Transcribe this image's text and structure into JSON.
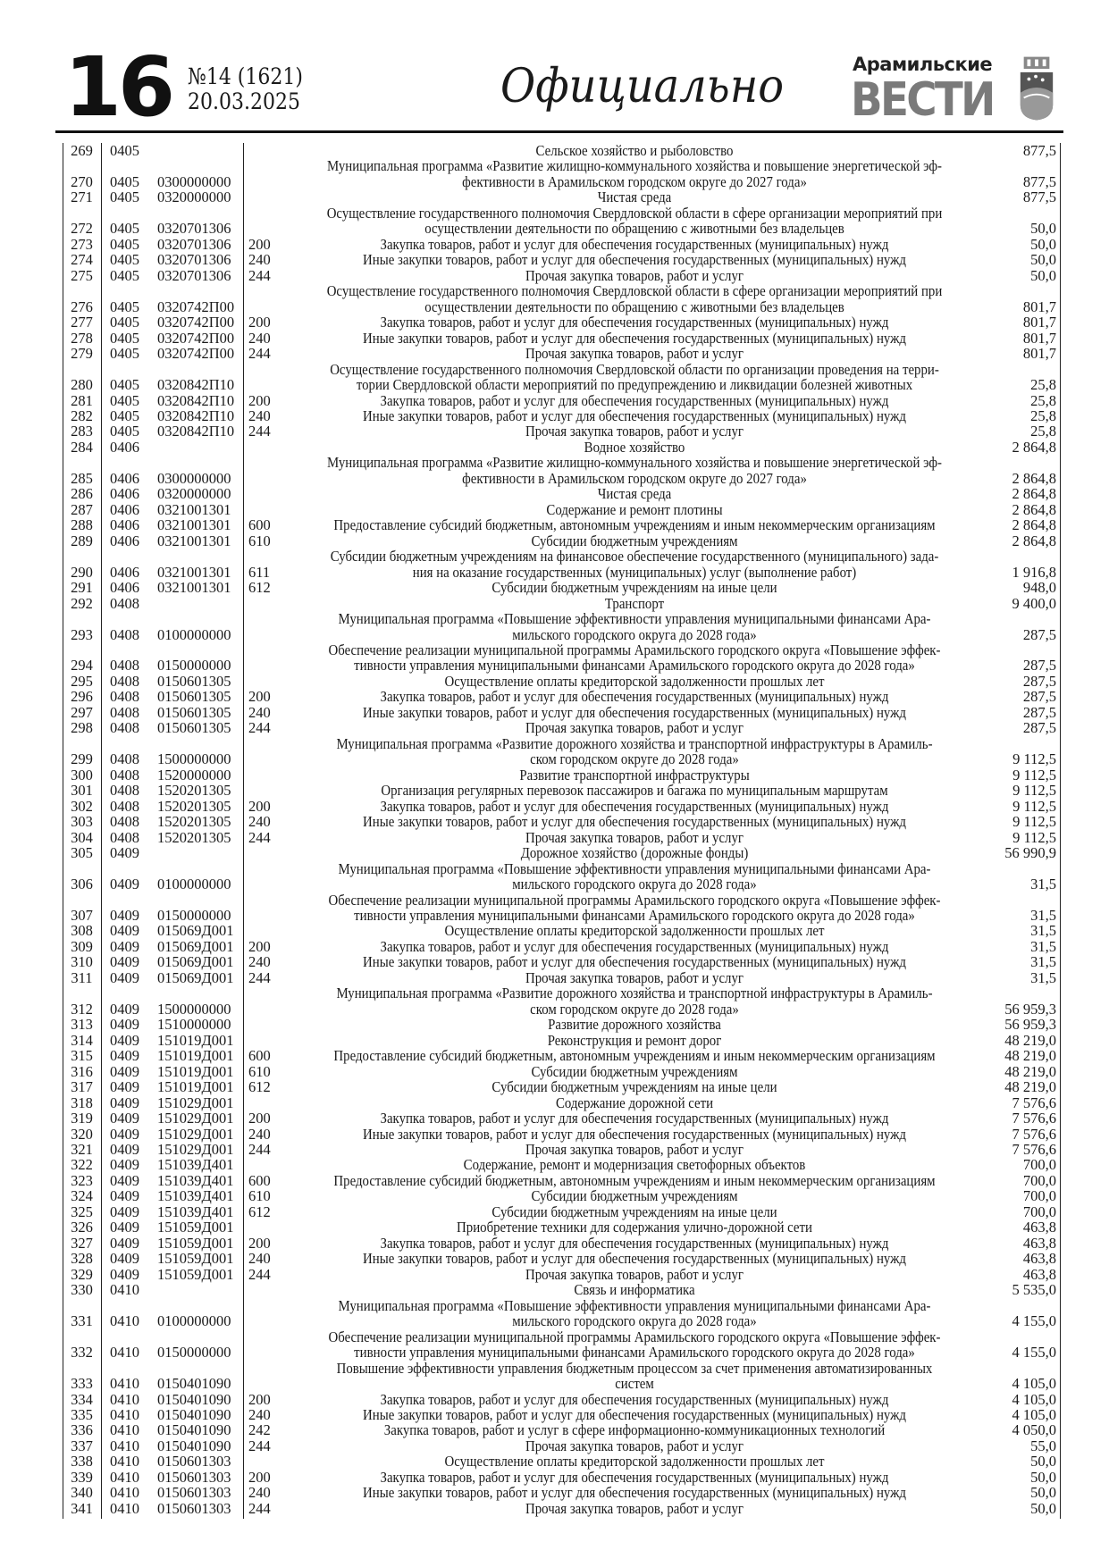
{
  "header": {
    "page_number": "16",
    "issue": "№14 (1621)",
    "date": "20.03.2025",
    "section": "Официально",
    "logo_top": "Арамильские",
    "logo_main": "ВЕСТИ"
  },
  "colors": {
    "text": "#1a1a1a",
    "logo_gray": "#7a7a7a"
  },
  "rows": [
    [
      "269",
      "0405",
      "",
      "",
      [
        "Сельское хозяйство и рыболовство"
      ],
      "877,5"
    ],
    [
      "270",
      "0405",
      "0300000000",
      "",
      [
        "Муниципальная программа «Развитие жилищно-коммунального хозяйства и повышение энергетической эф-",
        "фективности в Арамильском городском округе до 2027 года»"
      ],
      "877,5"
    ],
    [
      "271",
      "0405",
      "0320000000",
      "",
      [
        "Чистая среда"
      ],
      "877,5"
    ],
    [
      "272",
      "0405",
      "0320701306",
      "",
      [
        "Осуществление государственного полномочия Свердловской области в сфере организации мероприятий при",
        "осуществлении деятельности по обращению с животными без владельцев"
      ],
      "50,0"
    ],
    [
      "273",
      "0405",
      "0320701306",
      "200",
      [
        "Закупка товаров, работ и услуг для обеспечения государственных (муниципальных) нужд"
      ],
      "50,0"
    ],
    [
      "274",
      "0405",
      "0320701306",
      "240",
      [
        "Иные закупки товаров, работ и услуг для обеспечения государственных (муниципальных) нужд"
      ],
      "50,0"
    ],
    [
      "275",
      "0405",
      "0320701306",
      "244",
      [
        "Прочая закупка товаров, работ и услуг"
      ],
      "50,0"
    ],
    [
      "276",
      "0405",
      "0320742П00",
      "",
      [
        "Осуществление государственного полномочия Свердловской области в сфере организации мероприятий при",
        "осуществлении деятельности по обращению с животными без владельцев"
      ],
      "801,7"
    ],
    [
      "277",
      "0405",
      "0320742П00",
      "200",
      [
        "Закупка товаров, работ и услуг для обеспечения государственных (муниципальных) нужд"
      ],
      "801,7"
    ],
    [
      "278",
      "0405",
      "0320742П00",
      "240",
      [
        "Иные закупки товаров, работ и услуг для обеспечения государственных (муниципальных) нужд"
      ],
      "801,7"
    ],
    [
      "279",
      "0405",
      "0320742П00",
      "244",
      [
        "Прочая закупка товаров, работ и услуг"
      ],
      "801,7"
    ],
    [
      "280",
      "0405",
      "0320842П10",
      "",
      [
        "Осуществление государственного полномочия Свердловской области по организации проведения на терри-",
        "тории Свердловской области мероприятий по предупреждению и ликвидации болезней животных"
      ],
      "25,8"
    ],
    [
      "281",
      "0405",
      "0320842П10",
      "200",
      [
        "Закупка товаров, работ и услуг для обеспечения государственных (муниципальных) нужд"
      ],
      "25,8"
    ],
    [
      "282",
      "0405",
      "0320842П10",
      "240",
      [
        "Иные закупки товаров, работ и услуг для обеспечения государственных (муниципальных) нужд"
      ],
      "25,8"
    ],
    [
      "283",
      "0405",
      "0320842П10",
      "244",
      [
        "Прочая закупка товаров, работ и услуг"
      ],
      "25,8"
    ],
    [
      "284",
      "0406",
      "",
      "",
      [
        "Водное хозяйство"
      ],
      "2 864,8"
    ],
    [
      "285",
      "0406",
      "0300000000",
      "",
      [
        "Муниципальная программа «Развитие жилищно-коммунального хозяйства и повышение энергетической эф-",
        "фективности в Арамильском городском округе до 2027 года»"
      ],
      "2 864,8"
    ],
    [
      "286",
      "0406",
      "0320000000",
      "",
      [
        "Чистая среда"
      ],
      "2 864,8"
    ],
    [
      "287",
      "0406",
      "0321001301",
      "",
      [
        "Содержание и ремонт плотины"
      ],
      "2 864,8"
    ],
    [
      "288",
      "0406",
      "0321001301",
      "600",
      [
        "Предоставление субсидий бюджетным, автономным учреждениям и иным некоммерческим организациям"
      ],
      "2 864,8"
    ],
    [
      "289",
      "0406",
      "0321001301",
      "610",
      [
        "Субсидии бюджетным учреждениям"
      ],
      "2 864,8"
    ],
    [
      "290",
      "0406",
      "0321001301",
      "611",
      [
        "Субсидии бюджетным учреждениям на финансовое обеспечение государственного (муниципального) зада-",
        "ния на оказание государственных (муниципальных) услуг (выполнение работ)"
      ],
      "1 916,8"
    ],
    [
      "291",
      "0406",
      "0321001301",
      "612",
      [
        "Субсидии бюджетным учреждениям на иные цели"
      ],
      "948,0"
    ],
    [
      "292",
      "0408",
      "",
      "",
      [
        "Транспорт"
      ],
      "9 400,0"
    ],
    [
      "293",
      "0408",
      "0100000000",
      "",
      [
        "Муниципальная программа «Повышение эффективности управления муниципальными финансами Ара-",
        "мильского городского округа до 2028 года»"
      ],
      "287,5"
    ],
    [
      "294",
      "0408",
      "0150000000",
      "",
      [
        "Обеспечение реализации муниципальной программы Арамильского городского округа «Повышение эффек-",
        "тивности управления муниципальными финансами Арамильского городского округа до 2028 года»"
      ],
      "287,5"
    ],
    [
      "295",
      "0408",
      "0150601305",
      "",
      [
        "Осуществление оплаты кредиторской задолженности прошлых лет"
      ],
      "287,5"
    ],
    [
      "296",
      "0408",
      "0150601305",
      "200",
      [
        "Закупка товаров, работ и услуг для обеспечения государственных (муниципальных) нужд"
      ],
      "287,5"
    ],
    [
      "297",
      "0408",
      "0150601305",
      "240",
      [
        "Иные закупки товаров, работ и услуг для обеспечения государственных (муниципальных) нужд"
      ],
      "287,5"
    ],
    [
      "298",
      "0408",
      "0150601305",
      "244",
      [
        "Прочая закупка товаров, работ и услуг"
      ],
      "287,5"
    ],
    [
      "299",
      "0408",
      "1500000000",
      "",
      [
        "Муниципальная программа «Развитие дорожного хозяйства и транспортной инфраструктуры в Арамиль-",
        "ском городском округе до 2028 года»"
      ],
      "9 112,5"
    ],
    [
      "300",
      "0408",
      "1520000000",
      "",
      [
        "Развитие транспортной инфраструктуры"
      ],
      "9 112,5"
    ],
    [
      "301",
      "0408",
      "1520201305",
      "",
      [
        "Организация регулярных перевозок пассажиров и багажа по муниципальным маршрутам"
      ],
      "9 112,5"
    ],
    [
      "302",
      "0408",
      "1520201305",
      "200",
      [
        "Закупка товаров, работ и услуг для обеспечения государственных (муниципальных) нужд"
      ],
      "9 112,5"
    ],
    [
      "303",
      "0408",
      "1520201305",
      "240",
      [
        "Иные закупки товаров, работ и услуг для обеспечения государственных (муниципальных) нужд"
      ],
      "9 112,5"
    ],
    [
      "304",
      "0408",
      "1520201305",
      "244",
      [
        "Прочая закупка товаров, работ и услуг"
      ],
      "9 112,5"
    ],
    [
      "305",
      "0409",
      "",
      "",
      [
        "Дорожное хозяйство (дорожные фонды)"
      ],
      "56 990,9"
    ],
    [
      "306",
      "0409",
      "0100000000",
      "",
      [
        "Муниципальная программа «Повышение эффективности управления муниципальными финансами Ара-",
        "мильского городского округа до 2028 года»"
      ],
      "31,5"
    ],
    [
      "307",
      "0409",
      "0150000000",
      "",
      [
        "Обеспечение реализации муниципальной программы Арамильского городского округа «Повышение эффек-",
        "тивности управления муниципальными финансами Арамильского городского округа до 2028 года»"
      ],
      "31,5"
    ],
    [
      "308",
      "0409",
      "015069Д001",
      "",
      [
        "Осуществление оплаты кредиторской задолженности прошлых лет"
      ],
      "31,5"
    ],
    [
      "309",
      "0409",
      "015069Д001",
      "200",
      [
        "Закупка товаров, работ и услуг для обеспечения государственных (муниципальных) нужд"
      ],
      "31,5"
    ],
    [
      "310",
      "0409",
      "015069Д001",
      "240",
      [
        "Иные закупки товаров, работ и услуг для обеспечения государственных (муниципальных) нужд"
      ],
      "31,5"
    ],
    [
      "311",
      "0409",
      "015069Д001",
      "244",
      [
        "Прочая закупка товаров, работ и услуг"
      ],
      "31,5"
    ],
    [
      "312",
      "0409",
      "1500000000",
      "",
      [
        "Муниципальная программа «Развитие дорожного хозяйства и транспортной инфраструктуры в Арамиль-",
        "ском городском округе до 2028 года»"
      ],
      "56 959,3"
    ],
    [
      "313",
      "0409",
      "1510000000",
      "",
      [
        "Развитие дорожного хозяйства"
      ],
      "56 959,3"
    ],
    [
      "314",
      "0409",
      "151019Д001",
      "",
      [
        "Реконструкция и ремонт дорог"
      ],
      "48 219,0"
    ],
    [
      "315",
      "0409",
      "151019Д001",
      "600",
      [
        "Предоставление субсидий бюджетным, автономным учреждениям и иным некоммерческим организациям"
      ],
      "48 219,0"
    ],
    [
      "316",
      "0409",
      "151019Д001",
      "610",
      [
        "Субсидии бюджетным учреждениям"
      ],
      "48 219,0"
    ],
    [
      "317",
      "0409",
      "151019Д001",
      "612",
      [
        "Субсидии бюджетным учреждениям на иные цели"
      ],
      "48 219,0"
    ],
    [
      "318",
      "0409",
      "151029Д001",
      "",
      [
        "Содержание дорожной сети"
      ],
      "7 576,6"
    ],
    [
      "319",
      "0409",
      "151029Д001",
      "200",
      [
        "Закупка товаров, работ и услуг для обеспечения государственных (муниципальных) нужд"
      ],
      "7 576,6"
    ],
    [
      "320",
      "0409",
      "151029Д001",
      "240",
      [
        "Иные закупки товаров, работ и услуг для обеспечения государственных (муниципальных) нужд"
      ],
      "7 576,6"
    ],
    [
      "321",
      "0409",
      "151029Д001",
      "244",
      [
        "Прочая закупка товаров, работ и услуг"
      ],
      "7 576,6"
    ],
    [
      "322",
      "0409",
      "151039Д401",
      "",
      [
        "Содержание, ремонт и модернизация светофорных объектов"
      ],
      "700,0"
    ],
    [
      "323",
      "0409",
      "151039Д401",
      "600",
      [
        "Предоставление субсидий бюджетным, автономным учреждениям и иным некоммерческим организациям"
      ],
      "700,0"
    ],
    [
      "324",
      "0409",
      "151039Д401",
      "610",
      [
        "Субсидии бюджетным учреждениям"
      ],
      "700,0"
    ],
    [
      "325",
      "0409",
      "151039Д401",
      "612",
      [
        "Субсидии бюджетным учреждениям на иные цели"
      ],
      "700,0"
    ],
    [
      "326",
      "0409",
      "151059Д001",
      "",
      [
        "Приобретение техники для содержания улично-дорожной сети"
      ],
      "463,8"
    ],
    [
      "327",
      "0409",
      "151059Д001",
      "200",
      [
        "Закупка товаров, работ и услуг для обеспечения государственных (муниципальных) нужд"
      ],
      "463,8"
    ],
    [
      "328",
      "0409",
      "151059Д001",
      "240",
      [
        "Иные закупки товаров, работ и услуг для обеспечения государственных (муниципальных) нужд"
      ],
      "463,8"
    ],
    [
      "329",
      "0409",
      "151059Д001",
      "244",
      [
        "Прочая закупка товаров, работ и услуг"
      ],
      "463,8"
    ],
    [
      "330",
      "0410",
      "",
      "",
      [
        "Связь и информатика"
      ],
      "5 535,0"
    ],
    [
      "331",
      "0410",
      "0100000000",
      "",
      [
        "Муниципальная программа «Повышение эффективности управления муниципальными финансами Ара-",
        "мильского городского округа до 2028 года»"
      ],
      "4 155,0"
    ],
    [
      "332",
      "0410",
      "0150000000",
      "",
      [
        "Обеспечение реализации муниципальной программы Арамильского городского округа «Повышение эффек-",
        "тивности управления муниципальными финансами Арамильского городского округа до 2028 года»"
      ],
      "4 155,0"
    ],
    [
      "333",
      "0410",
      "0150401090",
      "",
      [
        "Повышение эффективности управления бюджетным процессом за счет применения автоматизированных",
        "систем"
      ],
      "4 105,0"
    ],
    [
      "334",
      "0410",
      "0150401090",
      "200",
      [
        "Закупка товаров, работ и услуг для обеспечения государственных (муниципальных) нужд"
      ],
      "4 105,0"
    ],
    [
      "335",
      "0410",
      "0150401090",
      "240",
      [
        "Иные закупки товаров, работ и услуг для обеспечения государственных (муниципальных) нужд"
      ],
      "4 105,0"
    ],
    [
      "336",
      "0410",
      "0150401090",
      "242",
      [
        "Закупка товаров, работ и услуг в сфере информационно-коммуникационных технологий"
      ],
      "4 050,0"
    ],
    [
      "337",
      "0410",
      "0150401090",
      "244",
      [
        "Прочая закупка товаров, работ и услуг"
      ],
      "55,0"
    ],
    [
      "338",
      "0410",
      "0150601303",
      "",
      [
        "Осуществление оплаты кредиторской задолженности прошлых лет"
      ],
      "50,0"
    ],
    [
      "339",
      "0410",
      "0150601303",
      "200",
      [
        "Закупка товаров, работ и услуг для обеспечения государственных (муниципальных) нужд"
      ],
      "50,0"
    ],
    [
      "340",
      "0410",
      "0150601303",
      "240",
      [
        "Иные закупки товаров, работ и услуг для обеспечения государственных (муниципальных) нужд"
      ],
      "50,0"
    ],
    [
      "341",
      "0410",
      "0150601303",
      "244",
      [
        "Прочая закупка товаров, работ и услуг"
      ],
      "50,0"
    ]
  ]
}
